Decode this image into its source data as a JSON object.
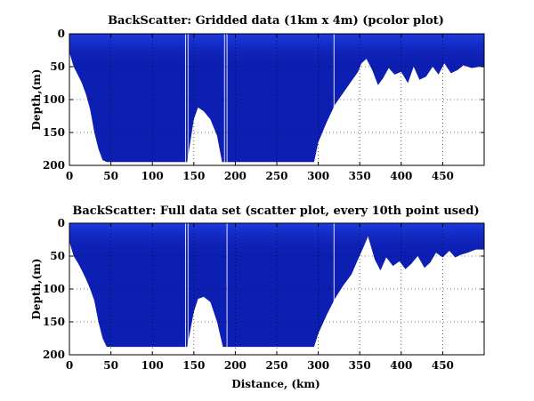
{
  "chart_data": [
    {
      "type": "heatmap",
      "title": "BackScatter: Gridded data (1km x 4m) (pcolor plot)",
      "xlabel": "",
      "ylabel": "Depth,(m)",
      "xlim": [
        0,
        500
      ],
      "ylim": [
        0,
        200
      ],
      "y_reversed": true,
      "xticks": [
        0,
        50,
        100,
        150,
        200,
        250,
        300,
        350,
        400,
        450
      ],
      "yticks": [
        0,
        50,
        100,
        150,
        200
      ],
      "grid": true,
      "colormap": "jet",
      "fill_color": "#0d1fb3",
      "bottom_profile": {
        "distance_km": [
          0,
          5,
          10,
          15,
          20,
          25,
          30,
          35,
          40,
          45,
          48,
          60,
          80,
          100,
          120,
          130,
          138,
          142,
          150,
          155,
          162,
          170,
          178,
          184,
          190,
          200,
          220,
          240,
          260,
          280,
          295,
          300,
          310,
          320,
          330,
          340,
          348,
          352,
          358,
          365,
          372,
          378,
          385,
          392,
          400,
          408,
          415,
          422,
          430,
          438,
          445,
          452,
          460,
          468,
          475,
          485,
          495,
          500
        ],
        "depth_m": [
          28,
          50,
          62,
          75,
          92,
          115,
          150,
          175,
          192,
          195,
          195,
          195,
          195,
          195,
          195,
          195,
          195,
          195,
          130,
          112,
          118,
          130,
          155,
          195,
          195,
          195,
          195,
          195,
          195,
          195,
          195,
          165,
          135,
          108,
          90,
          72,
          58,
          45,
          38,
          55,
          78,
          68,
          52,
          62,
          58,
          75,
          50,
          70,
          65,
          50,
          62,
          45,
          60,
          55,
          48,
          52,
          50,
          50
        ]
      },
      "streak_distance_km": [
        140,
        143,
        187,
        190,
        319
      ]
    },
    {
      "type": "scatter",
      "title": "BackScatter: Full data set (scatter plot, every 10th point used)",
      "xlabel": "Distance, (km)",
      "ylabel": "Depth,(m)",
      "xlim": [
        0,
        500
      ],
      "ylim": [
        0,
        200
      ],
      "y_reversed": true,
      "xticks": [
        0,
        50,
        100,
        150,
        200,
        250,
        300,
        350,
        400,
        450
      ],
      "yticks": [
        0,
        50,
        100,
        150,
        200
      ],
      "grid": true,
      "colormap": "jet",
      "fill_color": "#0d1fb3",
      "bottom_profile": {
        "distance_km": [
          0,
          5,
          10,
          15,
          20,
          25,
          30,
          35,
          40,
          45,
          50,
          80,
          110,
          138,
          142,
          150,
          155,
          162,
          170,
          178,
          185,
          200,
          230,
          260,
          295,
          300,
          310,
          320,
          330,
          340,
          348,
          355,
          360,
          368,
          375,
          382,
          390,
          398,
          405,
          412,
          420,
          428,
          435,
          442,
          450,
          458,
          465,
          472,
          480,
          490,
          500
        ],
        "depth_m": [
          28,
          50,
          60,
          72,
          85,
          100,
          118,
          150,
          175,
          188,
          188,
          188,
          188,
          188,
          188,
          135,
          115,
          112,
          120,
          150,
          188,
          188,
          188,
          188,
          188,
          168,
          140,
          115,
          95,
          78,
          55,
          35,
          20,
          55,
          72,
          52,
          65,
          58,
          70,
          62,
          50,
          68,
          60,
          45,
          52,
          42,
          52,
          48,
          45,
          40,
          40
        ]
      },
      "streak_distance_km": [
        140,
        143,
        190,
        319
      ]
    }
  ]
}
